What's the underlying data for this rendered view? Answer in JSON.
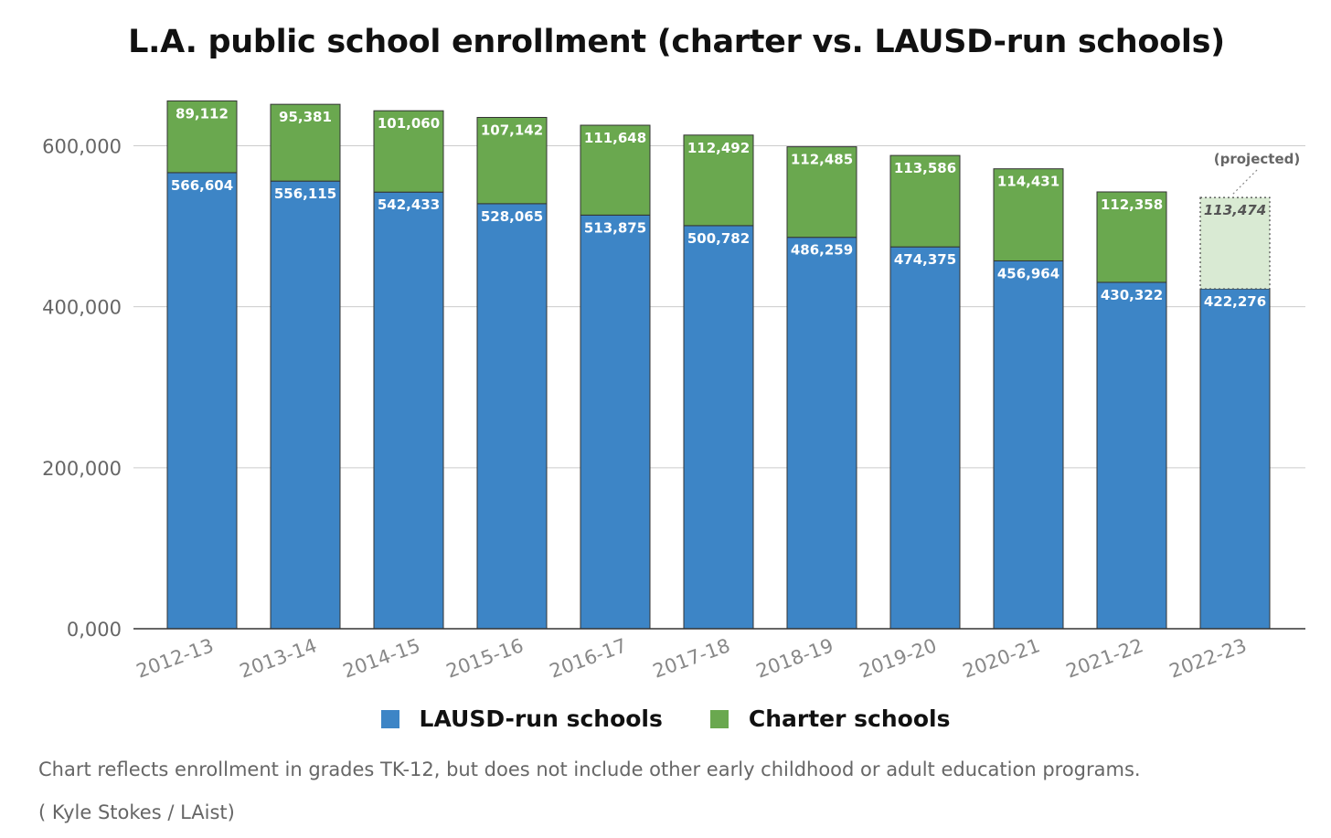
{
  "page": {
    "caption": "Chart reflects enrollment in grades TK-12, but does not include other early childhood or adult education programs.",
    "credit": "( Kyle Stokes / LAist)"
  },
  "chart_data": {
    "type": "bar",
    "stacked": true,
    "title": "L.A. public school enrollment (charter vs. LAUSD-run schools)",
    "xlabel": "",
    "ylabel": "",
    "ylim": [
      0,
      650000
    ],
    "yticks": [
      0,
      200000,
      400000,
      600000
    ],
    "ytick_labels": [
      "0,000",
      "200,000",
      "400,000",
      "600,000"
    ],
    "grid": true,
    "legend_position": "bottom",
    "categories": [
      "2012-13",
      "2013-14",
      "2014-15",
      "2015-16",
      "2016-17",
      "2017-18",
      "2018-19",
      "2019-20",
      "2020-21",
      "2021-22",
      "2022-23"
    ],
    "series": [
      {
        "name": "LAUSD-run schools",
        "color": "#3d85c6",
        "values": [
          566604,
          556115,
          542433,
          528065,
          513875,
          500782,
          486259,
          474375,
          456964,
          430322,
          422276
        ],
        "labels": [
          "566,604",
          "556,115",
          "542,433",
          "528,065",
          "513,875",
          "500,782",
          "486,259",
          "474,375",
          "456,964",
          "430,322",
          "422,276"
        ]
      },
      {
        "name": "Charter schools",
        "color": "#6aa84f",
        "projected_color": "#d9ead3",
        "values": [
          89112,
          95381,
          101060,
          107142,
          111648,
          112492,
          112485,
          113586,
          114431,
          112358,
          113474
        ],
        "labels": [
          "89,112",
          "95,381",
          "101,060",
          "107,142",
          "111,648",
          "112,492",
          "112,485",
          "113,586",
          "114,431",
          "112,358",
          "113,474"
        ]
      }
    ],
    "projected_index": 10,
    "annotation": "(projected)"
  }
}
